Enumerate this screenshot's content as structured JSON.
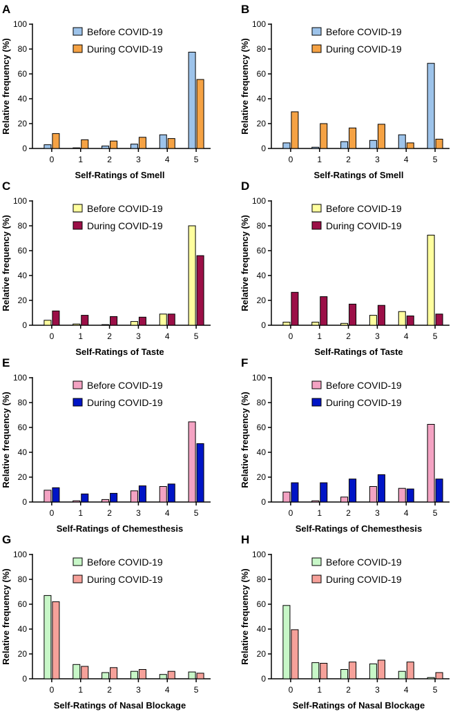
{
  "chart_data": [
    {
      "panel": "A",
      "type": "bar",
      "categories": [
        "0",
        "1",
        "2",
        "3",
        "4",
        "5"
      ],
      "series": [
        {
          "name": "Before COVID-19",
          "color": "#9dc3ea",
          "values": [
            3,
            0.5,
            2,
            3.5,
            11,
            77.5
          ]
        },
        {
          "name": "During COVID-19",
          "color": "#f5a244",
          "values": [
            12,
            7,
            6,
            9,
            8,
            55.5
          ]
        }
      ],
      "xlabel": "Self-Ratings of  Smell",
      "ylabel": "Relative frequency (%)",
      "ylim": [
        0,
        100
      ],
      "yticks": [
        "0",
        "20",
        "40",
        "60",
        "80",
        "100"
      ]
    },
    {
      "panel": "B",
      "type": "bar",
      "categories": [
        "0",
        "1",
        "2",
        "3",
        "4",
        "5"
      ],
      "series": [
        {
          "name": "Before COVID-19",
          "color": "#9dc3ea",
          "values": [
            4.5,
            1,
            5.5,
            6.5,
            11,
            68.5
          ]
        },
        {
          "name": "During COVID-19",
          "color": "#f5a244",
          "values": [
            29.5,
            20,
            16.5,
            19.5,
            4.5,
            7.5
          ]
        }
      ],
      "xlabel": "Self-Ratings of Smell",
      "ylabel": "Relative frequency (%)",
      "ylim": [
        0,
        100
      ],
      "yticks": [
        "0",
        "20",
        "40",
        "60",
        "80",
        "100"
      ]
    },
    {
      "panel": "C",
      "type": "bar",
      "categories": [
        "0",
        "1",
        "2",
        "3",
        "4",
        "5"
      ],
      "series": [
        {
          "name": "Before COVID-19",
          "color": "#ffff9e",
          "values": [
            4,
            1,
            0.5,
            3,
            9,
            80
          ]
        },
        {
          "name": "During COVID-19",
          "color": "#9b0f47",
          "values": [
            11.5,
            8,
            7,
            6.5,
            9,
            56
          ]
        }
      ],
      "xlabel": "Self-Ratings of  Taste",
      "ylabel": "Relative frequency (%)",
      "ylim": [
        0,
        100
      ],
      "yticks": [
        "0",
        "20",
        "40",
        "60",
        "80",
        "100"
      ]
    },
    {
      "panel": "D",
      "type": "bar",
      "categories": [
        "0",
        "1",
        "2",
        "3",
        "4",
        "5"
      ],
      "series": [
        {
          "name": "Before COVID-19",
          "color": "#ffff9e",
          "values": [
            2.5,
            2.5,
            1.5,
            8,
            11,
            72.5
          ]
        },
        {
          "name": "During COVID-19",
          "color": "#9b0f47",
          "values": [
            26.5,
            23,
            17,
            16,
            7.5,
            9
          ]
        }
      ],
      "xlabel": "Self-Ratings of  Taste",
      "ylabel": "Relative frequency (%)",
      "ylim": [
        0,
        100
      ],
      "yticks": [
        "0",
        "20",
        "40",
        "60",
        "80",
        "100"
      ]
    },
    {
      "panel": "E",
      "type": "bar",
      "categories": [
        "0",
        "1",
        "2",
        "3",
        "4",
        "5"
      ],
      "series": [
        {
          "name": "Before COVID-19",
          "color": "#f4a3c3",
          "values": [
            9.5,
            1,
            2,
            9,
            12.5,
            64.5
          ]
        },
        {
          "name": "During COVID-19",
          "color": "#0015c6",
          "values": [
            11.5,
            6.5,
            7,
            13,
            14.5,
            47
          ]
        }
      ],
      "xlabel": "Self-Ratings of Chemesthesis",
      "ylabel": "Relative frequency (%)",
      "ylim": [
        0,
        100
      ],
      "yticks": [
        "0",
        "20",
        "40",
        "60",
        "80",
        "100"
      ]
    },
    {
      "panel": "F",
      "type": "bar",
      "categories": [
        "0",
        "1",
        "2",
        "3",
        "4",
        "5"
      ],
      "series": [
        {
          "name": "Before COVID-19",
          "color": "#f4a3c3",
          "values": [
            8,
            1,
            4,
            12.5,
            11,
            62.5
          ]
        },
        {
          "name": "During COVID-19",
          "color": "#0015c6",
          "values": [
            15.5,
            15.5,
            18.5,
            22,
            10.5,
            18.5
          ]
        }
      ],
      "xlabel": "Self-Ratings of Chemesthesis",
      "ylabel": "Relative frequency (%)",
      "ylim": [
        0,
        100
      ],
      "yticks": [
        "0",
        "20",
        "40",
        "60",
        "80",
        "100"
      ]
    },
    {
      "panel": "G",
      "type": "bar",
      "categories": [
        "0",
        "1",
        "2",
        "3",
        "4",
        "5"
      ],
      "series": [
        {
          "name": "Before COVID-19",
          "color": "#c8f7c8",
          "values": [
            67,
            11.5,
            5,
            6,
            3.5,
            5.5
          ]
        },
        {
          "name": "During COVID-19",
          "color": "#f6a19a",
          "values": [
            62,
            10,
            9,
            7.5,
            6,
            4.5
          ]
        }
      ],
      "xlabel": "Self-Ratings of Nasal Blockage",
      "ylabel": "Relative frequency (%)",
      "ylim": [
        0,
        100
      ],
      "yticks": [
        "0",
        "20",
        "40",
        "60",
        "80",
        "100"
      ]
    },
    {
      "panel": "H",
      "type": "bar",
      "categories": [
        "0",
        "1",
        "2",
        "3",
        "4",
        "5"
      ],
      "series": [
        {
          "name": "Before COVID-19",
          "color": "#c8f7c8",
          "values": [
            59,
            13,
            7.5,
            12,
            6,
            1
          ]
        },
        {
          "name": "During COVID-19",
          "color": "#f6a19a",
          "values": [
            39.5,
            12.5,
            13.5,
            15,
            13.5,
            5
          ]
        }
      ],
      "xlabel": "Self-Ratings of Nasal Blockage",
      "ylabel": "Relative frequency (%)",
      "ylim": [
        0,
        100
      ],
      "yticks": [
        "0",
        "20",
        "40",
        "60",
        "80",
        "100"
      ]
    }
  ]
}
